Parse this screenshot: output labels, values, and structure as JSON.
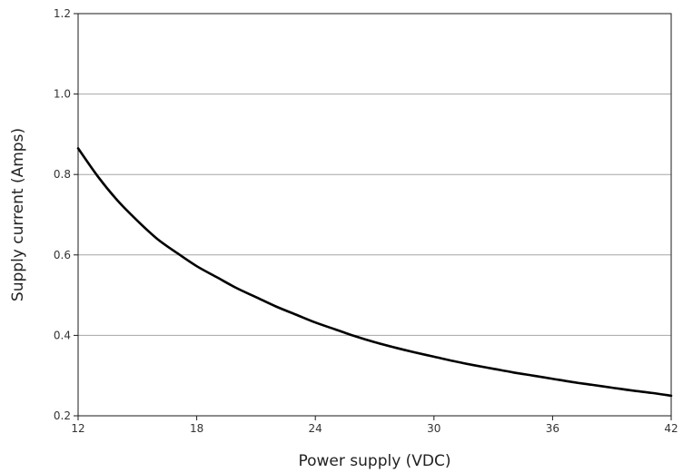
{
  "chart_data": {
    "type": "line",
    "title": "",
    "xlabel": "Power supply (VDC)",
    "ylabel": "Supply current (Amps)",
    "xlim": [
      12,
      42
    ],
    "ylim": [
      0.2,
      1.2
    ],
    "x_ticks": [
      12,
      18,
      24,
      30,
      36,
      42
    ],
    "y_ticks": [
      0.2,
      0.4,
      0.6,
      0.8,
      1.0,
      1.2
    ],
    "x_tick_labels": [
      "12",
      "18",
      "24",
      "30",
      "36",
      "42"
    ],
    "y_tick_labels": [
      "0.2",
      "0.4",
      "0.6",
      "0.8",
      "1.0",
      "1.2"
    ],
    "grid": "horizontal",
    "legend": "none",
    "series": [
      {
        "color": "#000000",
        "x": [
          12,
          13,
          14,
          15,
          16,
          17,
          18,
          19,
          20,
          21,
          22,
          23,
          24,
          25,
          26,
          27,
          28,
          29,
          30,
          31,
          32,
          33,
          34,
          35,
          36,
          37,
          38,
          39,
          40,
          41,
          42
        ],
        "y": [
          0.865,
          0.795,
          0.735,
          0.685,
          0.64,
          0.605,
          0.572,
          0.545,
          0.518,
          0.495,
          0.472,
          0.452,
          0.432,
          0.415,
          0.398,
          0.383,
          0.37,
          0.358,
          0.347,
          0.336,
          0.326,
          0.317,
          0.308,
          0.3,
          0.292,
          0.284,
          0.277,
          0.27,
          0.263,
          0.257,
          0.25
        ]
      }
    ]
  },
  "colors": {
    "gridline": "#a6a6a6",
    "frame": "#1a1a1a",
    "curve": "#000000"
  }
}
